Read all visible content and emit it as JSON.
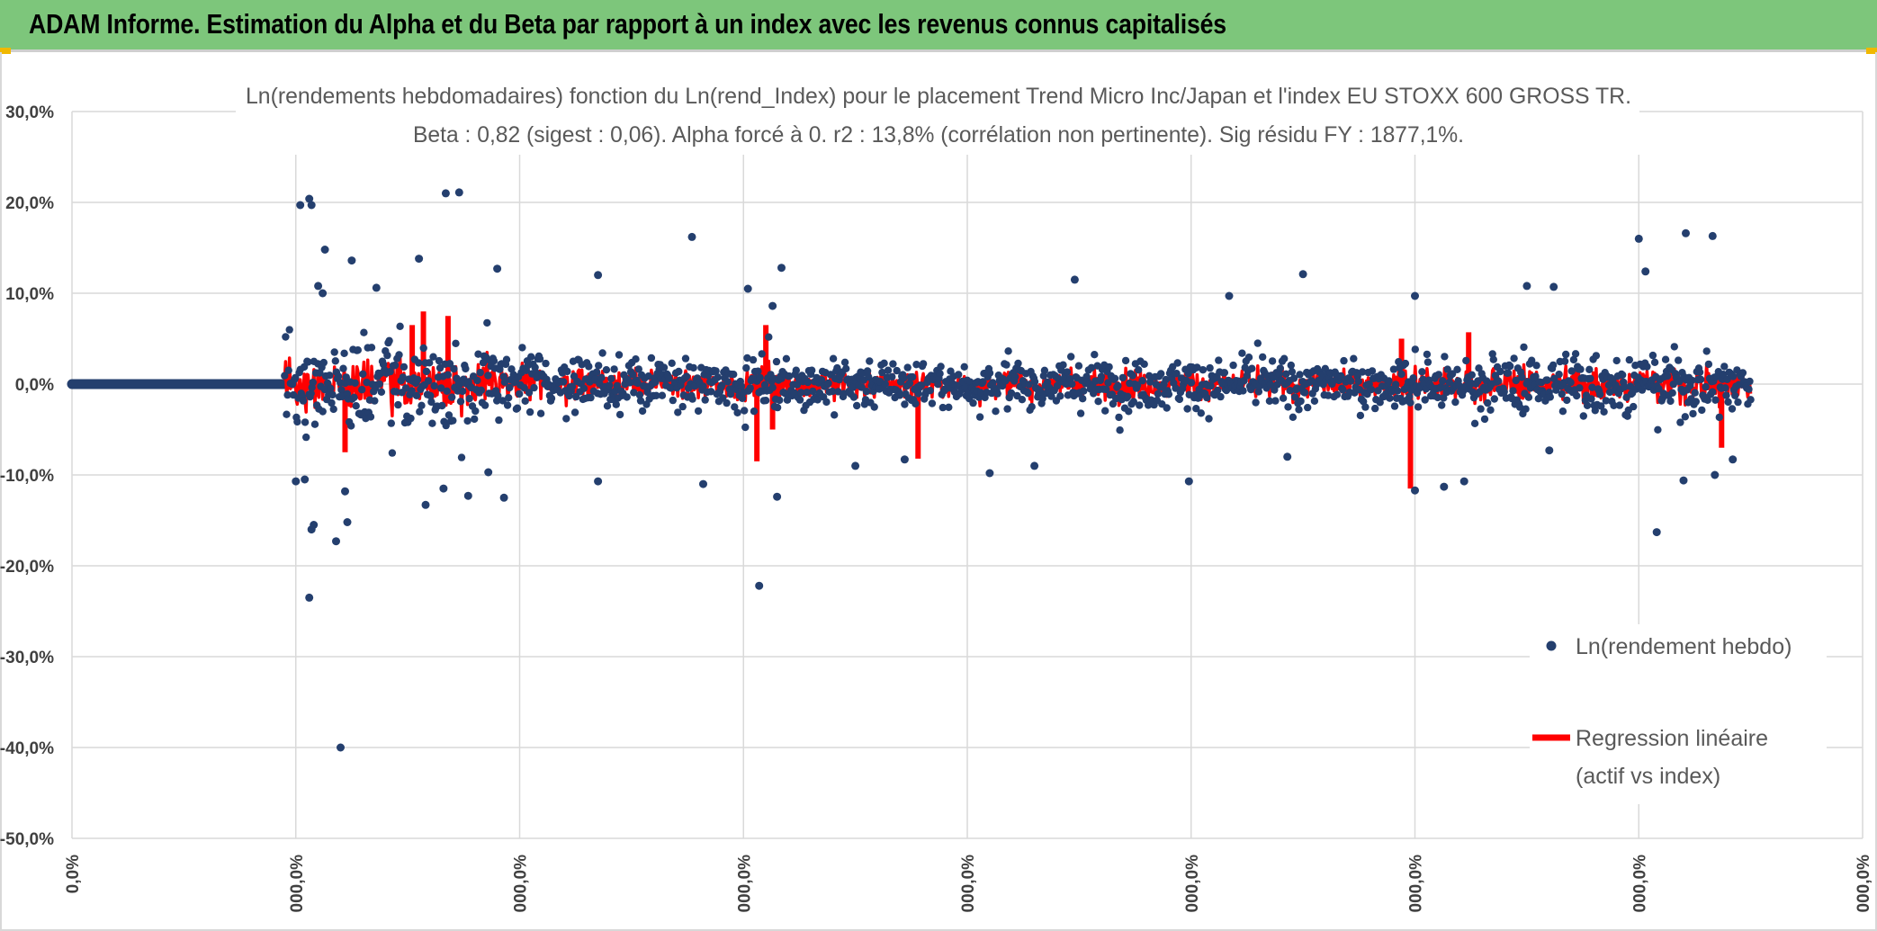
{
  "banner": {
    "title": "ADAM Informe. Estimation du Alpha et du Beta par rapport à un index avec les revenus connus capitalisés",
    "color": "#7dc67b"
  },
  "chart_data": {
    "type": "scatter",
    "title_line1": "Ln(rendements hebdomadaires) fonction du Ln(rend_Index) pour le placement Trend Micro Inc/Japan et l'index EU STOXX 600 GROSS TR.",
    "title_line2": "Beta : 0,82 (sigest : 0,06). Alpha forcé à 0. r2 : 13,8% (corrélation non pertinente). Sig résidu FY : 1877,1%.",
    "ylim": [
      -0.5,
      0.3
    ],
    "y_ticks": [
      "30,0%",
      "20,0%",
      "10,0%",
      "0,0%",
      "-10,0%",
      "-20,0%",
      "-30,0%",
      "-40,0%",
      "-50,0%"
    ],
    "x_ticks": [
      "0,0%",
      "000,0%",
      "000,0%",
      "000,0%",
      "000,0%",
      "000,0%",
      "000,0%",
      "000,0%",
      "000,0%"
    ],
    "grid": true,
    "legend": [
      {
        "label": "Ln(rendement hebdo)",
        "color": "#243f6e"
      },
      {
        "label_line1": "Regression linéaire",
        "label_line2": "(actif vs index)",
        "color": "#ff0000"
      }
    ],
    "x_range_index": [
      0,
      8
    ],
    "flat_segment_end": 0.95,
    "data_end": 7.5,
    "outliers": [
      [
        1.02,
        0.197
      ],
      [
        1.06,
        0.204
      ],
      [
        1.07,
        0.197
      ],
      [
        1.1,
        0.108
      ],
      [
        1.13,
        0.148
      ],
      [
        1.12,
        0.1
      ],
      [
        1.0,
        -0.107
      ],
      [
        1.04,
        -0.105
      ],
      [
        1.06,
        -0.235
      ],
      [
        1.07,
        -0.16
      ],
      [
        1.08,
        -0.155
      ],
      [
        1.18,
        -0.173
      ],
      [
        1.2,
        -0.4
      ],
      [
        1.23,
        -0.152
      ],
      [
        1.22,
        -0.118
      ],
      [
        1.25,
        0.136
      ],
      [
        1.36,
        0.106
      ],
      [
        1.55,
        0.138
      ],
      [
        1.58,
        -0.133
      ],
      [
        1.67,
        0.21
      ],
      [
        1.73,
        0.211
      ],
      [
        1.66,
        -0.115
      ],
      [
        1.77,
        -0.123
      ],
      [
        1.9,
        0.127
      ],
      [
        1.93,
        -0.125
      ],
      [
        1.86,
        -0.097
      ],
      [
        2.35,
        0.12
      ],
      [
        2.35,
        -0.107
      ],
      [
        2.77,
        0.162
      ],
      [
        2.82,
        -0.11
      ],
      [
        3.02,
        0.105
      ],
      [
        3.07,
        -0.222
      ],
      [
        3.13,
        0.086
      ],
      [
        3.17,
        0.128
      ],
      [
        3.15,
        -0.124
      ],
      [
        3.5,
        -0.09
      ],
      [
        3.72,
        -0.083
      ],
      [
        4.1,
        -0.098
      ],
      [
        4.3,
        -0.09
      ],
      [
        4.48,
        0.115
      ],
      [
        4.99,
        -0.107
      ],
      [
        5.17,
        0.097
      ],
      [
        5.5,
        0.121
      ],
      [
        5.43,
        -0.08
      ],
      [
        6.0,
        0.097
      ],
      [
        6.0,
        -0.117
      ],
      [
        6.13,
        -0.113
      ],
      [
        6.22,
        -0.107
      ],
      [
        6.5,
        0.108
      ],
      [
        6.62,
        0.107
      ],
      [
        6.6,
        -0.073
      ],
      [
        7.0,
        0.16
      ],
      [
        7.03,
        0.124
      ],
      [
        7.08,
        -0.163
      ],
      [
        7.21,
        0.166
      ],
      [
        7.2,
        -0.106
      ],
      [
        7.33,
        0.163
      ],
      [
        7.34,
        -0.1
      ],
      [
        7.42,
        -0.083
      ]
    ],
    "regression_spikes": [
      [
        1.22,
        -0.075
      ],
      [
        1.52,
        0.065
      ],
      [
        1.57,
        0.08
      ],
      [
        1.68,
        0.075
      ],
      [
        3.06,
        -0.085
      ],
      [
        3.1,
        0.065
      ],
      [
        3.13,
        -0.05
      ],
      [
        3.78,
        -0.082
      ],
      [
        5.94,
        0.05
      ],
      [
        5.98,
        -0.115
      ],
      [
        6.24,
        0.057
      ],
      [
        7.37,
        -0.07
      ]
    ]
  }
}
